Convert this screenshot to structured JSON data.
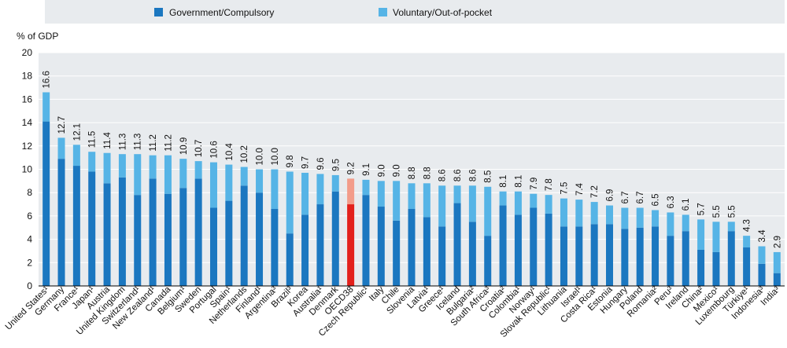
{
  "colors": {
    "government": "#1b77c0",
    "voluntary": "#56b4e6",
    "government_highlight": "#e3211c",
    "voluntary_highlight": "#f39c8a"
  },
  "legend": {
    "government_label": "Government/Compulsory",
    "voluntary_label": "Voluntary/Out-of-pocket"
  },
  "chart_data": {
    "type": "bar",
    "stacked": true,
    "ylabel": "% of GDP",
    "ylim": [
      0,
      20
    ],
    "yticks": [
      "0",
      "2",
      "4",
      "6",
      "8",
      "10",
      "12",
      "14",
      "16",
      "18",
      "20"
    ],
    "highlight": "OECD38",
    "categories": [
      "United States¹",
      "Germany",
      "France¹",
      "Japan¹",
      "Austria",
      "United Kingdom",
      "Switzerland¹",
      "New Zealand¹",
      "Canada",
      "Belgium¹",
      "Sweden",
      "Portugal",
      "Spain¹",
      "Netherlands",
      "Finland¹",
      "Argentina³",
      "Brazil³",
      "Korea",
      "Australia¹",
      "Denmark",
      "OECD38",
      "Czech Republic¹",
      "Italy",
      "Chile",
      "Slovenia",
      "Latvia¹",
      "Greece¹",
      "Iceland",
      "Bulgaria²",
      "South Africa³",
      "Croatia²",
      "Colombia¹",
      "Norway¹",
      "Slovak Republic¹",
      "Lithuania",
      "Israel¹",
      "Costa Rica¹",
      "Estonia",
      "Hungary",
      "Poland",
      "Romania²",
      "Peru³",
      "Ireland",
      "China²",
      "Mexico¹",
      "Luxembourg",
      "Türkiye¹",
      "Indonesia³",
      "India³"
    ],
    "totals": [
      16.6,
      12.7,
      12.1,
      11.5,
      11.4,
      11.3,
      11.3,
      11.2,
      11.2,
      10.9,
      10.7,
      10.6,
      10.4,
      10.2,
      10.0,
      10.0,
      9.8,
      9.7,
      9.6,
      9.5,
      9.2,
      9.1,
      9.0,
      9.0,
      8.8,
      8.8,
      8.6,
      8.6,
      8.6,
      8.5,
      8.1,
      8.1,
      7.9,
      7.8,
      7.5,
      7.4,
      7.2,
      6.9,
      6.7,
      6.7,
      6.5,
      6.3,
      6.1,
      5.7,
      5.5,
      5.5,
      4.3,
      3.4,
      2.9
    ],
    "total_labels": [
      "16.6",
      "12.7",
      "12.1",
      "11.5",
      "11.4",
      "11.3",
      "11.3",
      "11.2",
      "11.2",
      "10.9",
      "10.7",
      "10.6",
      "10.4",
      "10.2",
      "10.0",
      "10.0",
      "9.8",
      "9.7",
      "9.6",
      "9.5",
      "9.2",
      "9.1",
      "9.0",
      "9.0",
      "8.8",
      "8.8",
      "8.6",
      "8.6",
      "8.6",
      "8.5",
      "8.1",
      "8.1",
      "7.9",
      "7.8",
      "7.5",
      "7.4",
      "7.2",
      "6.9",
      "6.7",
      "6.7",
      "6.5",
      "6.3",
      "6.1",
      "5.7",
      "5.5",
      "5.5",
      "4.3",
      "3.4",
      "2.9"
    ],
    "series": [
      {
        "name": "Government/Compulsory",
        "values": [
          14.1,
          10.9,
          10.3,
          9.8,
          8.8,
          9.3,
          7.8,
          9.2,
          7.9,
          8.4,
          9.2,
          6.7,
          7.3,
          8.6,
          8.0,
          6.6,
          4.5,
          6.1,
          7.0,
          8.1,
          7.0,
          7.8,
          6.8,
          5.6,
          6.6,
          5.9,
          5.1,
          7.1,
          5.5,
          4.3,
          6.9,
          6.1,
          6.7,
          6.2,
          5.1,
          5.1,
          5.3,
          5.3,
          4.9,
          5.0,
          5.1,
          4.3,
          4.7,
          3.1,
          2.9,
          4.7,
          3.3,
          1.9,
          1.1
        ]
      },
      {
        "name": "Voluntary/Out-of-pocket",
        "values": [
          2.5,
          1.8,
          1.8,
          1.7,
          2.6,
          2.0,
          3.5,
          2.0,
          3.3,
          2.5,
          1.5,
          3.9,
          3.1,
          1.6,
          2.0,
          3.4,
          5.3,
          3.6,
          2.6,
          1.4,
          2.2,
          1.3,
          2.2,
          3.4,
          2.2,
          2.9,
          3.5,
          1.5,
          3.1,
          4.2,
          1.2,
          2.0,
          1.2,
          1.6,
          2.4,
          2.3,
          1.9,
          1.6,
          1.8,
          1.7,
          1.4,
          2.0,
          1.4,
          2.6,
          2.6,
          0.8,
          1.0,
          1.5,
          1.8
        ]
      }
    ]
  }
}
